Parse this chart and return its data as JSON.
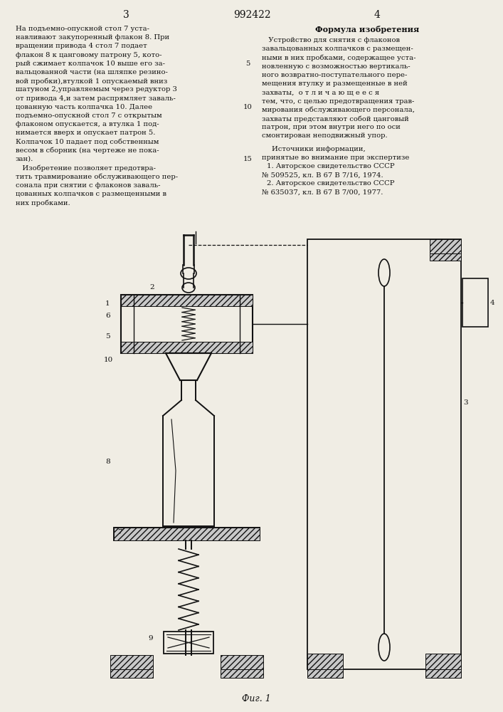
{
  "page_number_left": "3",
  "page_number_center": "992422",
  "page_number_right": "4",
  "left_col_lines": [
    "На подъемно-опускной стол 7 уста-",
    "навливают закупоренный флакон 8. При",
    "вращении привода 4 стол 7 подает",
    "флакон 8 к цанговому патрону 5, кото-",
    "рый сжимает колпачок 10 выше его за-",
    "вальцованной части (на шляпке резино-",
    "вой пробки),втулкой 1 опускаемый вниз ",
    "шатуном 2,управляемым через редуктор 3",
    "от привода 4,и затем распрямляет заваль-",
    "цованную часть колпачка 10. Далее",
    "подъемно-опускной стол 7 с открытым",
    "флаконом опускается, а втулка 1 под-",
    "нимается вверх и опускает патрон 5.",
    "Колпачок 10 падает под собственным",
    "весом в сборник (на чертеже не пока-",
    "зан).",
    "   Изобретение позволяет предотвра-",
    "тить травмирование обслуживающего пер-",
    "сонала при снятии с флаконов заваль-",
    "цованных колпачков с размещенными в",
    "них пробками."
  ],
  "right_col_title": "Формула изобретения",
  "right_col_lines": [
    "   Устройство для снятия с флаконов",
    "завальцованных колпачков с размещен-",
    "ными в них пробками, содержащее уста-",
    "новленную с возможностью вертикаль-",
    "ного возвратно-поступательного пере-",
    "мещения втулку и размещенные в ней",
    "захваты,  о т л и ч а ю щ е е с я",
    "тем, что, с целью предотвращения трав-",
    "мирования обслуживающего персонала,",
    "захваты представляют собой цанговый",
    "патрон, при этом внутри него по оси",
    "смонтирован неподвижный упор."
  ],
  "line_numbers": [
    "5",
    "10",
    "15"
  ],
  "sources_title": "Источники информации,",
  "sources_sub": "принятые во внимание при экспертизе",
  "sources": [
    "1. Авторское свидетельство СССР",
    "№ 509525, кл. В 67 В 7/16, 1974.",
    "2. Авторское свидетельство СССР",
    "№ 635037, кл. В 67 В 7/00, 1977."
  ],
  "fig_caption": "Фиг. 1",
  "bg": "#f0ede4",
  "tc": "#111111",
  "dc": "#111111"
}
